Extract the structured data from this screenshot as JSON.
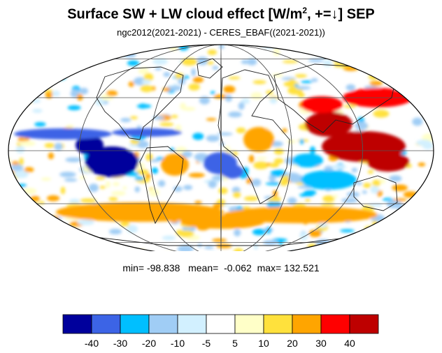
{
  "title": {
    "main": "Surface SW + LW cloud effect [W/m",
    "sup": "2",
    "rest": ", +=↓]  SEP"
  },
  "subtitle": "ngc2012(2021-2021) - CERES_EBAF((2021-2021))",
  "stats": {
    "min_label": "min=",
    "min": "-98.838",
    "mean_label": "mean=",
    "mean": "-0.062",
    "max_label": "max=",
    "max": "132.521"
  },
  "map": {
    "projection": "Mollweide",
    "grid": true,
    "field": "model minus observation difference, surface SW+LW cloud radiative effect",
    "regions": [
      {
        "name": "east-pacific-stratocumulus",
        "value": -45
      },
      {
        "name": "itcz-pacific-band",
        "value": -35
      },
      {
        "name": "south-atlantic",
        "value": -40
      },
      {
        "name": "indian-ocean-south",
        "value": -25
      },
      {
        "name": "maritime-continent",
        "value": 45
      },
      {
        "name": "east-asia-north-pacific",
        "value": 35
      },
      {
        "name": "southern-ocean-band",
        "value": 25
      },
      {
        "name": "central-africa",
        "value": 20
      }
    ]
  },
  "colorbar": {
    "colors": [
      "#00009c",
      "#3c64e6",
      "#00bfff",
      "#a0cdf5",
      "#d2f0ff",
      "#ffffff",
      "#ffffc8",
      "#ffe13c",
      "#ffa500",
      "#ff0000",
      "#be0000"
    ],
    "tick_labels": [
      "-40",
      "-30",
      "-20",
      "-10",
      "-5",
      "5",
      "10",
      "20",
      "30",
      "40"
    ]
  }
}
